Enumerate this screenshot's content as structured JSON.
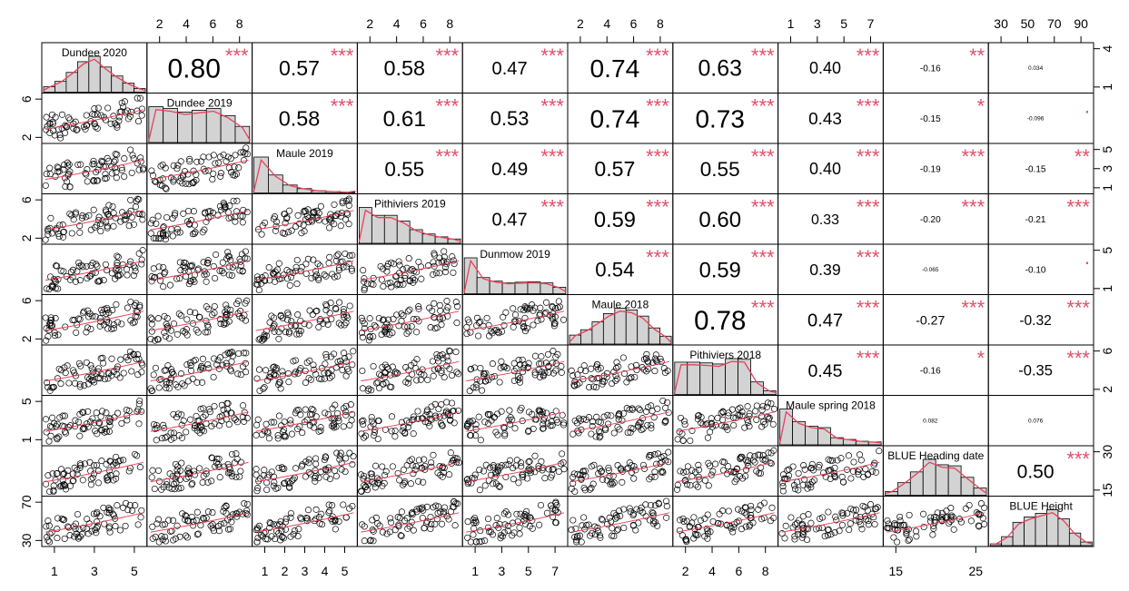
{
  "chart_data": {
    "type": "scatter-matrix",
    "variables": [
      "Dundee 2020",
      "Dundee 2019",
      "Maule 2019",
      "Pithiviers 2019",
      "Dunmow 2019",
      "Maule 2018",
      "Pithiviers 2018",
      "Maule spring 2018",
      "BLUE Heading date",
      "BLUE Height"
    ],
    "axes": {
      "top": [
        {
          "variable": 1,
          "ticks": [
            "2",
            "4",
            "6",
            "8"
          ]
        },
        {
          "variable": 3,
          "ticks": [
            "2",
            "4",
            "6",
            "8"
          ]
        },
        {
          "variable": 5,
          "ticks": [
            "2",
            "4",
            "6",
            "8"
          ]
        },
        {
          "variable": 7,
          "ticks": [
            "1",
            "3",
            "5",
            "7"
          ]
        },
        {
          "variable": 9,
          "ticks": [
            "30",
            "50",
            "70",
            "90"
          ]
        }
      ],
      "bottom": [
        {
          "variable": 0,
          "ticks": [
            "1",
            "3",
            "5"
          ]
        },
        {
          "variable": 2,
          "ticks": [
            "1",
            "2",
            "3",
            "4",
            "5"
          ]
        },
        {
          "variable": 4,
          "ticks": [
            "1",
            "3",
            "5",
            "7"
          ]
        },
        {
          "variable": 6,
          "ticks": [
            "2",
            "4",
            "6",
            "8"
          ]
        },
        {
          "variable": 8,
          "ticks": [
            "15",
            "25"
          ]
        }
      ],
      "left": [
        {
          "variable": 1,
          "ticks": [
            "2",
            "6"
          ]
        },
        {
          "variable": 3,
          "ticks": [
            "2",
            "6"
          ]
        },
        {
          "variable": 5,
          "ticks": [
            "2",
            "6"
          ]
        },
        {
          "variable": 7,
          "ticks": [
            "1",
            "5"
          ]
        },
        {
          "variable": 9,
          "ticks": [
            "30",
            "70"
          ]
        }
      ],
      "right": [
        {
          "variable": 0,
          "ticks": [
            "1",
            "4"
          ]
        },
        {
          "variable": 2,
          "ticks": [
            "1",
            "3",
            "5"
          ]
        },
        {
          "variable": 4,
          "ticks": [
            "1",
            "5"
          ]
        },
        {
          "variable": 6,
          "ticks": [
            "2",
            "6"
          ]
        },
        {
          "variable": 8,
          "ticks": [
            "15",
            "30"
          ]
        }
      ]
    },
    "correlations": [
      {
        "row": 0,
        "col": 1,
        "r": "0.80",
        "stars": "***"
      },
      {
        "row": 0,
        "col": 2,
        "r": "0.57",
        "stars": "***"
      },
      {
        "row": 0,
        "col": 3,
        "r": "0.58",
        "stars": "***"
      },
      {
        "row": 0,
        "col": 4,
        "r": "0.47",
        "stars": "***"
      },
      {
        "row": 0,
        "col": 5,
        "r": "0.74",
        "stars": "***"
      },
      {
        "row": 0,
        "col": 6,
        "r": "0.63",
        "stars": "***"
      },
      {
        "row": 0,
        "col": 7,
        "r": "0.40",
        "stars": "***"
      },
      {
        "row": 0,
        "col": 8,
        "r": "-0.16",
        "stars": "**"
      },
      {
        "row": 0,
        "col": 9,
        "r": "0.034",
        "stars": ""
      },
      {
        "row": 1,
        "col": 2,
        "r": "0.58",
        "stars": "***"
      },
      {
        "row": 1,
        "col": 3,
        "r": "0.61",
        "stars": "***"
      },
      {
        "row": 1,
        "col": 4,
        "r": "0.53",
        "stars": "***"
      },
      {
        "row": 1,
        "col": 5,
        "r": "0.74",
        "stars": "***"
      },
      {
        "row": 1,
        "col": 6,
        "r": "0.73",
        "stars": "***"
      },
      {
        "row": 1,
        "col": 7,
        "r": "0.43",
        "stars": "***"
      },
      {
        "row": 1,
        "col": 8,
        "r": "-0.15",
        "stars": "*"
      },
      {
        "row": 1,
        "col": 9,
        "r": "-0.096",
        "stars": "."
      },
      {
        "row": 2,
        "col": 3,
        "r": "0.55",
        "stars": "***"
      },
      {
        "row": 2,
        "col": 4,
        "r": "0.49",
        "stars": "***"
      },
      {
        "row": 2,
        "col": 5,
        "r": "0.57",
        "stars": "***"
      },
      {
        "row": 2,
        "col": 6,
        "r": "0.55",
        "stars": "***"
      },
      {
        "row": 2,
        "col": 7,
        "r": "0.40",
        "stars": "***"
      },
      {
        "row": 2,
        "col": 8,
        "r": "-0.19",
        "stars": "***"
      },
      {
        "row": 2,
        "col": 9,
        "r": "-0.15",
        "stars": "**"
      },
      {
        "row": 3,
        "col": 4,
        "r": "0.47",
        "stars": "***"
      },
      {
        "row": 3,
        "col": 5,
        "r": "0.59",
        "stars": "***"
      },
      {
        "row": 3,
        "col": 6,
        "r": "0.60",
        "stars": "***"
      },
      {
        "row": 3,
        "col": 7,
        "r": "0.33",
        "stars": "***"
      },
      {
        "row": 3,
        "col": 8,
        "r": "-0.20",
        "stars": "***"
      },
      {
        "row": 3,
        "col": 9,
        "r": "-0.21",
        "stars": "***"
      },
      {
        "row": 4,
        "col": 5,
        "r": "0.54",
        "stars": "***"
      },
      {
        "row": 4,
        "col": 6,
        "r": "0.59",
        "stars": "***"
      },
      {
        "row": 4,
        "col": 7,
        "r": "0.39",
        "stars": "***"
      },
      {
        "row": 4,
        "col": 8,
        "r": "-0.065",
        "stars": ""
      },
      {
        "row": 4,
        "col": 9,
        "r": "-0.10",
        "stars": "."
      },
      {
        "row": 5,
        "col": 6,
        "r": "0.78",
        "stars": "***"
      },
      {
        "row": 5,
        "col": 7,
        "r": "0.47",
        "stars": "***"
      },
      {
        "row": 5,
        "col": 8,
        "r": "-0.27",
        "stars": "***"
      },
      {
        "row": 5,
        "col": 9,
        "r": "-0.32",
        "stars": "***"
      },
      {
        "row": 6,
        "col": 7,
        "r": "0.45",
        "stars": "***"
      },
      {
        "row": 6,
        "col": 8,
        "r": "-0.16",
        "stars": "*"
      },
      {
        "row": 6,
        "col": 9,
        "r": "-0.35",
        "stars": "***"
      },
      {
        "row": 7,
        "col": 8,
        "r": "0.082",
        "stars": ""
      },
      {
        "row": 7,
        "col": 9,
        "r": "0.076",
        "stars": ""
      },
      {
        "row": 8,
        "col": 9,
        "r": "0.50",
        "stars": "***"
      }
    ],
    "histograms": [
      [
        0.15,
        0.3,
        0.55,
        0.85,
        1.0,
        0.7,
        0.45,
        0.25,
        0.1
      ],
      [
        1.0,
        0.95,
        0.85,
        0.9,
        0.95,
        0.75,
        0.45
      ],
      [
        1.0,
        0.5,
        0.22,
        0.12,
        0.06,
        0.04,
        0.02
      ],
      [
        1.0,
        0.78,
        0.78,
        0.62,
        0.38,
        0.26,
        0.18,
        0.12
      ],
      [
        1.0,
        0.45,
        0.35,
        0.3,
        0.32,
        0.33,
        0.3,
        0.18
      ],
      [
        0.25,
        0.4,
        0.62,
        0.85,
        1.0,
        0.95,
        0.78,
        0.45,
        0.22
      ],
      [
        0.9,
        0.9,
        0.88,
        0.85,
        1.0,
        0.98,
        0.35,
        0.1
      ],
      [
        1.0,
        0.65,
        0.52,
        0.48,
        0.2,
        0.15,
        0.1,
        0.08
      ],
      [
        0.1,
        0.35,
        0.65,
        1.0,
        0.85,
        0.82,
        0.5,
        0.2
      ],
      [
        0.05,
        0.25,
        0.65,
        0.8,
        0.9,
        1.0,
        0.75,
        0.35,
        0.1
      ]
    ],
    "colors": {
      "points": "#000000",
      "smooth": "#e8405a",
      "stars": "#e0506a",
      "bars": "#d3d3d3",
      "frame": "#000000"
    }
  }
}
